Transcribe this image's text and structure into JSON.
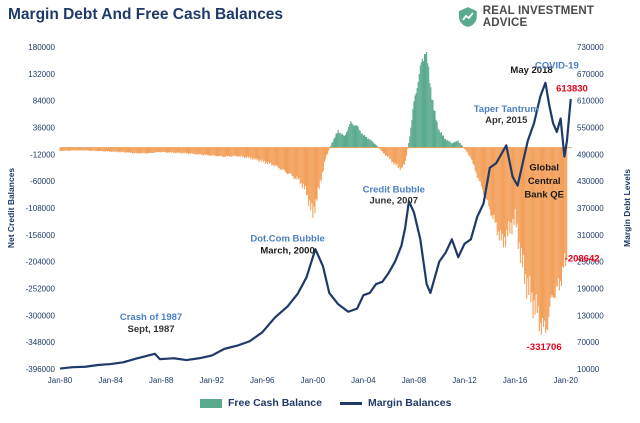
{
  "chart_data": {
    "type": "bar+line",
    "title": "Margin Debt And Free Cash Balances",
    "brand": "REAL INVESTMENT ADVICE",
    "ylabel_left": "Net Credit Balances",
    "ylabel_right": "Margin Debt Levels",
    "left_axis": {
      "ticks": [
        180000,
        132000,
        84000,
        36000,
        -12000,
        -60000,
        -108000,
        -156000,
        -204000,
        -252000,
        -300000,
        -348000,
        -396000
      ],
      "tick_labels": [
        "180000",
        "132000",
        "84000",
        "36000",
        "-12000",
        "-60000",
        "-108000",
        "-156000",
        "-204000",
        "-252000",
        "-300000",
        "-348000",
        "-396000"
      ],
      "ylim": [
        -396000,
        180000
      ]
    },
    "right_axis": {
      "ticks": [
        730000,
        670000,
        610000,
        550000,
        490000,
        430000,
        370000,
        310000,
        250000,
        190000,
        130000,
        70000,
        10000
      ],
      "tick_labels": [
        "730000",
        "670000",
        "610000",
        "550000",
        "490000",
        "430000",
        "370000",
        "310000",
        "250000",
        "190000",
        "130000",
        "70000",
        "10000"
      ],
      "ylim": [
        10000,
        730000
      ]
    },
    "x_axis": {
      "range": [
        1980,
        2020.5
      ],
      "ticks": [
        1980,
        1984,
        1988,
        1992,
        1996,
        2000,
        2004,
        2008,
        2012,
        2016,
        2020
      ],
      "tick_labels": [
        "Jan-80",
        "Jan-84",
        "Jan-88",
        "Jan-92",
        "Jan-96",
        "Jan-00",
        "Jan-04",
        "Jan-08",
        "Jan-12",
        "Jan-16",
        "Jan-20"
      ]
    },
    "series": [
      {
        "name": "Free Cash Balance",
        "kind": "bar",
        "axis": "left",
        "color_positive": "#5aaa8e",
        "color_negative": "#f3a05a",
        "points": [
          [
            1980.0,
            -6000
          ],
          [
            1981.0,
            -5000
          ],
          [
            1982.0,
            -5000
          ],
          [
            1983.0,
            -6000
          ],
          [
            1984.0,
            -7000
          ],
          [
            1985.0,
            -8000
          ],
          [
            1986.0,
            -10000
          ],
          [
            1987.0,
            -10000
          ],
          [
            1987.8,
            -8000
          ],
          [
            1988.0,
            -8000
          ],
          [
            1989.0,
            -9000
          ],
          [
            1990.0,
            -10000
          ],
          [
            1991.0,
            -12000
          ],
          [
            1992.0,
            -14000
          ],
          [
            1993.0,
            -16000
          ],
          [
            1994.0,
            -15000
          ],
          [
            1995.0,
            -18000
          ],
          [
            1996.0,
            -24000
          ],
          [
            1997.0,
            -32000
          ],
          [
            1998.0,
            -45000
          ],
          [
            1999.0,
            -60000
          ],
          [
            1999.5,
            -80000
          ],
          [
            2000.0,
            -120000
          ],
          [
            2000.5,
            -72000
          ],
          [
            2001.0,
            -20000
          ],
          [
            2001.5,
            8000
          ],
          [
            2002.0,
            30000
          ],
          [
            2002.5,
            20000
          ],
          [
            2003.0,
            45000
          ],
          [
            2003.5,
            38000
          ],
          [
            2004.0,
            22000
          ],
          [
            2004.5,
            15000
          ],
          [
            2005.0,
            5000
          ],
          [
            2005.5,
            -8000
          ],
          [
            2006.0,
            -18000
          ],
          [
            2006.5,
            -30000
          ],
          [
            2007.0,
            -38000
          ],
          [
            2007.3,
            -28000
          ],
          [
            2007.6,
            10000
          ],
          [
            2008.0,
            80000
          ],
          [
            2008.3,
            118000
          ],
          [
            2008.6,
            150000
          ],
          [
            2008.9,
            178000
          ],
          [
            2009.2,
            130000
          ],
          [
            2009.6,
            65000
          ],
          [
            2010.0,
            30000
          ],
          [
            2010.5,
            15000
          ],
          [
            2011.0,
            8000
          ],
          [
            2011.5,
            12000
          ],
          [
            2012.0,
            -2000
          ],
          [
            2012.5,
            -18000
          ],
          [
            2013.0,
            -50000
          ],
          [
            2013.5,
            -80000
          ],
          [
            2014.0,
            -110000
          ],
          [
            2014.5,
            -140000
          ],
          [
            2015.0,
            -170000
          ],
          [
            2015.5,
            -150000
          ],
          [
            2016.0,
            -125000
          ],
          [
            2016.5,
            -200000
          ],
          [
            2017.0,
            -250000
          ],
          [
            2017.5,
            -280000
          ],
          [
            2018.0,
            -310000
          ],
          [
            2018.3,
            -331706
          ],
          [
            2018.7,
            -300000
          ],
          [
            2019.0,
            -260000
          ],
          [
            2019.5,
            -250000
          ],
          [
            2019.8,
            -210000
          ],
          [
            2020.1,
            -208642
          ]
        ]
      },
      {
        "name": "Margin Balances",
        "kind": "line",
        "axis": "right",
        "color": "#1f3a68",
        "points": [
          [
            1980.0,
            11000
          ],
          [
            1981.0,
            14000
          ],
          [
            1982.0,
            15000
          ],
          [
            1983.0,
            19000
          ],
          [
            1984.0,
            21000
          ],
          [
            1985.0,
            25000
          ],
          [
            1986.0,
            33000
          ],
          [
            1987.5,
            44000
          ],
          [
            1987.9,
            32000
          ],
          [
            1988.5,
            33000
          ],
          [
            1989.0,
            34000
          ],
          [
            1990.0,
            30000
          ],
          [
            1991.0,
            34000
          ],
          [
            1992.0,
            40000
          ],
          [
            1993.0,
            55000
          ],
          [
            1994.0,
            62000
          ],
          [
            1995.0,
            72000
          ],
          [
            1996.0,
            92000
          ],
          [
            1997.0,
            125000
          ],
          [
            1998.0,
            150000
          ],
          [
            1998.8,
            178000
          ],
          [
            1999.5,
            215000
          ],
          [
            2000.2,
            278000
          ],
          [
            2000.8,
            240000
          ],
          [
            2001.3,
            180000
          ],
          [
            2002.0,
            155000
          ],
          [
            2002.8,
            138000
          ],
          [
            2003.5,
            145000
          ],
          [
            2004.0,
            175000
          ],
          [
            2004.5,
            180000
          ],
          [
            2005.0,
            200000
          ],
          [
            2005.5,
            205000
          ],
          [
            2006.0,
            225000
          ],
          [
            2006.5,
            250000
          ],
          [
            2007.0,
            285000
          ],
          [
            2007.3,
            325000
          ],
          [
            2007.6,
            385000
          ],
          [
            2008.0,
            360000
          ],
          [
            2008.5,
            300000
          ],
          [
            2009.0,
            200000
          ],
          [
            2009.3,
            180000
          ],
          [
            2010.0,
            250000
          ],
          [
            2010.5,
            270000
          ],
          [
            2011.0,
            300000
          ],
          [
            2011.5,
            260000
          ],
          [
            2012.0,
            290000
          ],
          [
            2012.5,
            300000
          ],
          [
            2013.0,
            350000
          ],
          [
            2013.5,
            380000
          ],
          [
            2014.0,
            460000
          ],
          [
            2014.5,
            470000
          ],
          [
            2015.3,
            510000
          ],
          [
            2015.8,
            440000
          ],
          [
            2016.2,
            420000
          ],
          [
            2016.6,
            470000
          ],
          [
            2017.0,
            520000
          ],
          [
            2017.5,
            560000
          ],
          [
            2018.0,
            620000
          ],
          [
            2018.4,
            650000
          ],
          [
            2018.7,
            600000
          ],
          [
            2019.0,
            560000
          ],
          [
            2019.3,
            540000
          ],
          [
            2019.6,
            570000
          ],
          [
            2019.9,
            485000
          ],
          [
            2020.1,
            520000
          ],
          [
            2020.4,
            613830
          ]
        ]
      }
    ],
    "annotations": [
      {
        "text": "May 2018",
        "color": "#1a1a1a",
        "x": 2017.3,
        "y_right": 672000,
        "axis": "right"
      },
      {
        "text": "COVID-19",
        "color": "#4a7fc1",
        "x": 2019.3,
        "y_right": 682000,
        "axis": "right"
      },
      {
        "text": "613830",
        "color": "#e5001c",
        "x": 2020.5,
        "y_right": 630000,
        "axis": "right"
      },
      {
        "text": "Taper Tantrum",
        "color": "#4a7fc1",
        "x": 2015.3,
        "y_right": 585000,
        "axis": "right"
      },
      {
        "text": "Apr, 2015",
        "color": "#333333",
        "x": 2015.3,
        "y_right": 560000,
        "axis": "right"
      },
      {
        "text": "Global",
        "color": "#1a1a1a",
        "x": 2018.3,
        "y_right": 454000,
        "axis": "right"
      },
      {
        "text": "Central",
        "color": "#1a1a1a",
        "x": 2018.3,
        "y_right": 424000,
        "axis": "right"
      },
      {
        "text": "Bank QE",
        "color": "#1a1a1a",
        "x": 2018.3,
        "y_right": 394000,
        "axis": "right"
      },
      {
        "text": "-208642",
        "color": "#e5001c",
        "x": 2021.3,
        "y_left": -204000,
        "axis": "left"
      },
      {
        "text": "-331706",
        "color": "#e5001c",
        "x": 2018.3,
        "y_left": -362000,
        "axis": "left"
      },
      {
        "text": "Credit Bubble",
        "color": "#4a7fc1",
        "x": 2006.4,
        "y_right": 405000,
        "axis": "right"
      },
      {
        "text": "June, 2007",
        "color": "#333333",
        "x": 2006.4,
        "y_right": 380000,
        "axis": "right"
      },
      {
        "text": "Dot.Com Bubble",
        "color": "#4a7fc1",
        "x": 1998.0,
        "y_right": 295000,
        "axis": "right"
      },
      {
        "text": "March, 2000",
        "color": "#1a1a1a",
        "x": 1998.0,
        "y_right": 268000,
        "axis": "right"
      },
      {
        "text": "Crash of 1987",
        "color": "#4a7fc1",
        "x": 1987.2,
        "y_right": 120000,
        "axis": "right"
      },
      {
        "text": "Sept, 1987",
        "color": "#333333",
        "x": 1987.2,
        "y_right": 93000,
        "axis": "right"
      }
    ],
    "legend": [
      "Free Cash Balance",
      "Margin Balances"
    ],
    "legend_position": "bottom",
    "grid": false
  }
}
